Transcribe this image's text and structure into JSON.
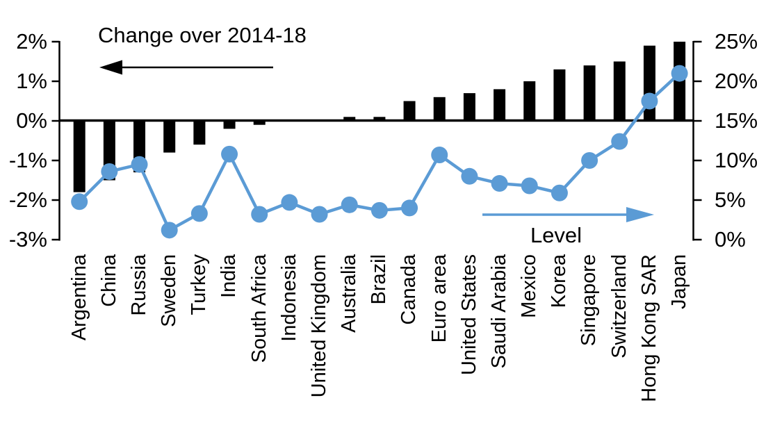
{
  "chart_data": {
    "type": "combo-bar-line",
    "title": "Change over 2014-18",
    "categories": [
      "Argentina",
      "China",
      "Russia",
      "Sweden",
      "Turkey",
      "India",
      "South Africa",
      "Indonesia",
      "United Kingdom",
      "Australia",
      "Brazil",
      "Canada",
      "Euro area",
      "United States",
      "Saudi Arabia",
      "Mexico",
      "Korea",
      "Singapore",
      "Switzerland",
      "Hong Kong SAR",
      "Japan"
    ],
    "series": [
      {
        "name": "Change over 2014-18",
        "type": "bar",
        "axis": "left",
        "color": "#000000",
        "values": [
          -1.8,
          -1.5,
          -1.3,
          -0.8,
          -0.6,
          -0.2,
          -0.1,
          0,
          0,
          0.1,
          0.1,
          0.5,
          0.6,
          0.7,
          0.8,
          1.0,
          1.3,
          1.4,
          1.5,
          1.9,
          2.0
        ]
      },
      {
        "name": "Level",
        "type": "line",
        "axis": "right",
        "color": "#5B9BD5",
        "values": [
          4.8,
          8.6,
          9.5,
          1.2,
          3.3,
          10.8,
          3.2,
          4.7,
          3.2,
          4.4,
          3.7,
          4.0,
          10.7,
          8.0,
          7.1,
          6.8,
          5.9,
          10.0,
          12.4,
          17.5,
          21.0
        ]
      }
    ],
    "left_axis": {
      "min": -3,
      "max": 2,
      "tick_step": 1,
      "tick_labels": [
        "2%",
        "1%",
        "0%",
        "-1%",
        "-2%",
        "-3%"
      ]
    },
    "right_axis": {
      "min": 0,
      "max": 25,
      "tick_step": 5,
      "tick_labels": [
        "25%",
        "20%",
        "15%",
        "10%",
        "5%",
        "0%"
      ]
    },
    "annotations": [
      {
        "text": "Change over 2014-18",
        "arrow_direction": "left",
        "color": "#000000"
      },
      {
        "text": "Level",
        "arrow_direction": "right",
        "color": "#5B9BD5"
      }
    ],
    "grid": false,
    "legend_position": "none",
    "background": "#FFFFFF"
  }
}
